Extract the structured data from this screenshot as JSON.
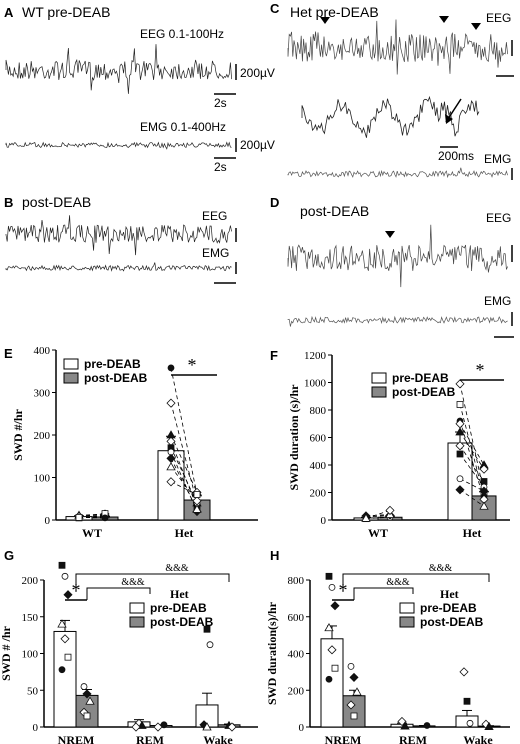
{
  "panels": {
    "A": {
      "letter": "A",
      "title": "WT  pre-DEAB",
      "eeg_label": "EEG 0.1-100Hz",
      "emg_label": "EMG 0.1-400Hz",
      "scale_uv_top": "200µV",
      "scale_uv_bot": "200µV",
      "scale_t_top": "2s",
      "scale_t_bot": "2s"
    },
    "B": {
      "letter": "B",
      "title": "post-DEAB",
      "eeg": "EEG",
      "emg": "EMG"
    },
    "C": {
      "letter": "C",
      "title": "Het pre-DEAB",
      "eeg": "EEG",
      "emg": "EMG",
      "zoom_scale": "200ms"
    },
    "D": {
      "letter": "D",
      "title": "post-DEAB",
      "eeg": "EEG",
      "emg": "EMG"
    }
  },
  "chart_data": [
    {
      "panel": "E",
      "type": "bar",
      "categories": [
        "WT",
        "Het"
      ],
      "series": [
        {
          "name": "pre-DEAB",
          "values": [
            8,
            163
          ]
        },
        {
          "name": "post-DEAB",
          "values": [
            7,
            47
          ]
        }
      ],
      "error": {
        "pre-DEAB": [
          2,
          34
        ],
        "post-DEAB": [
          2,
          10
        ]
      },
      "ylabel": "SWD #/hr",
      "ylim": [
        0,
        400
      ],
      "yticks": [
        "0",
        "100",
        "200",
        "300",
        "400"
      ],
      "legend": "top-left",
      "significance": "*",
      "pairs": [
        [
          5,
          8
        ],
        [
          6,
          10
        ],
        [
          9,
          12
        ],
        [
          11,
          14
        ],
        [
          8,
          15
        ],
        [
          6,
          5
        ],
        [
          358,
          60
        ],
        [
          275,
          40
        ],
        [
          200,
          65
        ],
        [
          185,
          30
        ],
        [
          170,
          40
        ],
        [
          160,
          20
        ],
        [
          145,
          25
        ],
        [
          125,
          45
        ],
        [
          90,
          60
        ]
      ]
    },
    {
      "panel": "F",
      "type": "bar",
      "categories": [
        "WT",
        "Het"
      ],
      "series": [
        {
          "name": "pre-DEAB",
          "values": [
            15,
            560
          ]
        },
        {
          "name": "post-DEAB",
          "values": [
            20,
            175
          ]
        }
      ],
      "error": {
        "pre-DEAB": [
          5,
          80
        ],
        "post-DEAB": [
          8,
          30
        ]
      },
      "ylabel": "SWD duration (s)/hr",
      "ylim": [
        0,
        1200
      ],
      "yticks": [
        "0",
        "200",
        "400",
        "600",
        "800",
        "1000",
        "1200"
      ],
      "legend": "top-right",
      "significance": "*",
      "pairs": [
        [
          10,
          20
        ],
        [
          20,
          35
        ],
        [
          30,
          40
        ],
        [
          12,
          70
        ],
        [
          990,
          200
        ],
        [
          840,
          170
        ],
        [
          720,
          150
        ],
        [
          700,
          400
        ],
        [
          640,
          370
        ],
        [
          540,
          280
        ],
        [
          480,
          240
        ],
        [
          300,
          210
        ],
        [
          220,
          100
        ]
      ]
    },
    {
      "panel": "G",
      "type": "bar",
      "title": "Het",
      "categories": [
        "NREM",
        "REM",
        "Wake"
      ],
      "series": [
        {
          "name": "pre-DEAB",
          "values": [
            130,
            7,
            30
          ]
        },
        {
          "name": "post-DEAB",
          "values": [
            43,
            2,
            3
          ]
        }
      ],
      "error": {
        "pre-DEAB": [
          15,
          3,
          16
        ],
        "post-DEAB": [
          8,
          1,
          1
        ]
      },
      "ylabel": "SWD # /hr",
      "ylim": [
        0,
        200
      ],
      "yticks": [
        "0",
        "50",
        "100",
        "150",
        "200"
      ],
      "legend": "top-right",
      "significance": [
        "*",
        "&&&",
        "&&&"
      ],
      "points": {
        "pre-DEAB": [
          [
            0,
            220
          ],
          [
            0,
            205
          ],
          [
            0,
            180
          ],
          [
            0,
            140
          ],
          [
            0,
            120
          ],
          [
            0,
            95
          ],
          [
            0,
            78
          ],
          [
            1,
            5
          ],
          [
            1,
            2
          ],
          [
            1,
            0
          ],
          [
            2,
            133
          ],
          [
            2,
            112
          ],
          [
            2,
            3
          ],
          [
            2,
            0
          ]
        ],
        "post-DEAB": [
          [
            0,
            55
          ],
          [
            0,
            45
          ],
          [
            0,
            35
          ],
          [
            0,
            20
          ],
          [
            0,
            15
          ],
          [
            1,
            3
          ],
          [
            1,
            0
          ],
          [
            2,
            2
          ],
          [
            2,
            0
          ]
        ]
      }
    },
    {
      "panel": "H",
      "type": "bar",
      "title": "Het",
      "categories": [
        "NREM",
        "REM",
        "Wake"
      ],
      "series": [
        {
          "name": "pre-DEAB",
          "values": [
            480,
            15,
            60
          ]
        },
        {
          "name": "post-DEAB",
          "values": [
            170,
            6,
            5
          ]
        }
      ],
      "error": {
        "pre-DEAB": [
          70,
          6,
          30
        ],
        "post-DEAB": [
          30,
          2,
          2
        ]
      },
      "ylabel": "SWD duration(s)/hr",
      "ylim": [
        0,
        800
      ],
      "yticks": [
        "0",
        "200",
        "400",
        "600",
        "800"
      ],
      "legend": "top-right",
      "significance": [
        "*",
        "&&&",
        "&&&"
      ],
      "points": {
        "pre-DEAB": [
          [
            0,
            820
          ],
          [
            0,
            760
          ],
          [
            0,
            660
          ],
          [
            0,
            540
          ],
          [
            0,
            420
          ],
          [
            0,
            320
          ],
          [
            0,
            260
          ],
          [
            1,
            30
          ],
          [
            1,
            5
          ],
          [
            2,
            300
          ],
          [
            2,
            140
          ],
          [
            2,
            20
          ]
        ],
        "post-DEAB": [
          [
            0,
            330
          ],
          [
            0,
            270
          ],
          [
            0,
            190
          ],
          [
            0,
            120
          ],
          [
            0,
            60
          ],
          [
            1,
            8
          ],
          [
            2,
            15
          ],
          [
            2,
            2
          ]
        ]
      }
    }
  ]
}
